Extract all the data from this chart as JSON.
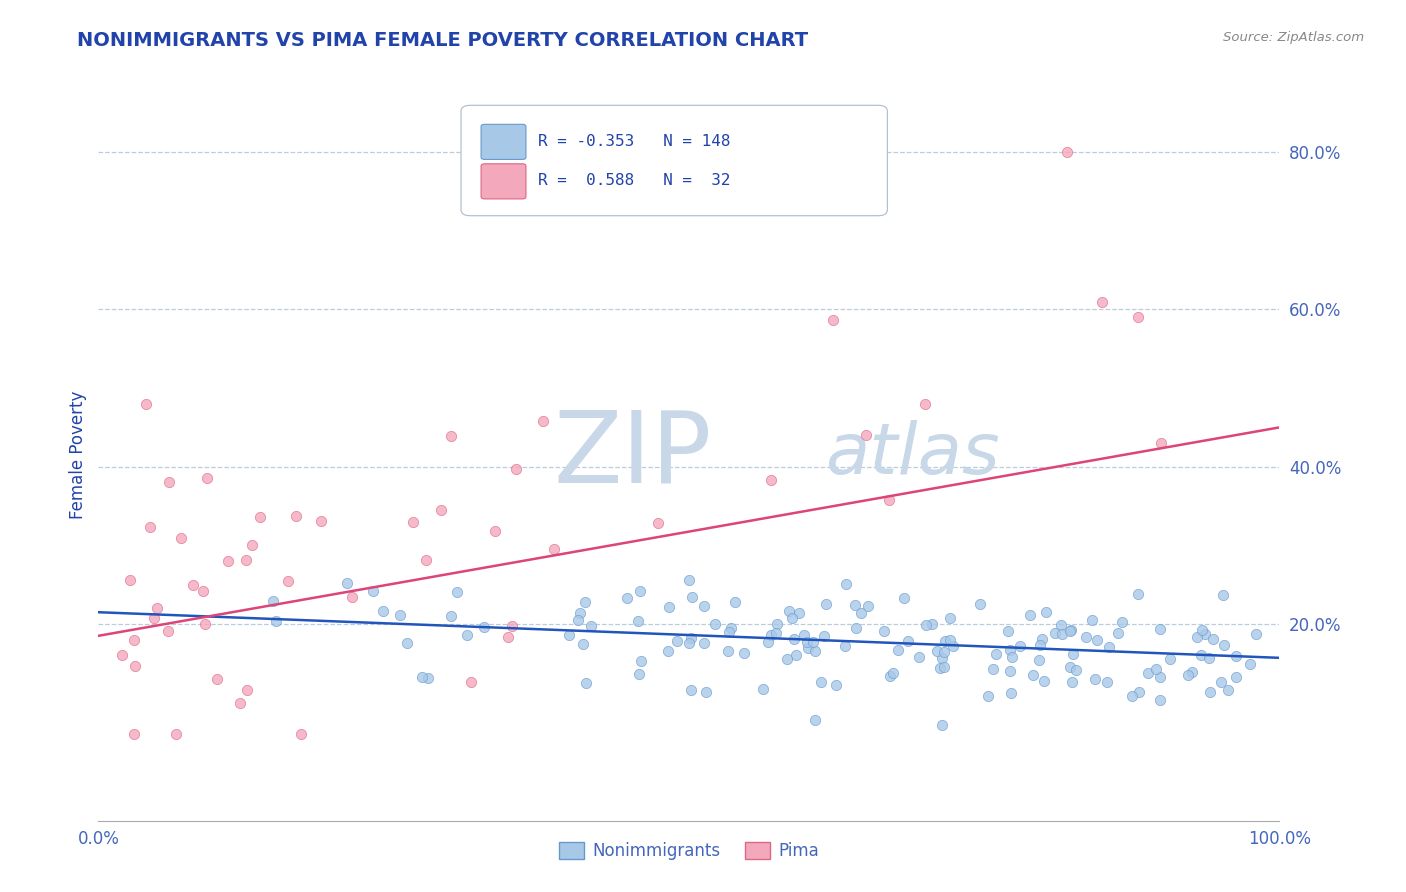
{
  "title": "NONIMMIGRANTS VS PIMA FEMALE POVERTY CORRELATION CHART",
  "source": "Source: ZipAtlas.com",
  "ylabel": "Female Poverty",
  "ytick_positions": [
    0.0,
    0.2,
    0.4,
    0.6,
    0.8
  ],
  "ytick_labels": [
    "",
    "20.0%",
    "40.0%",
    "60.0%",
    "80.0%"
  ],
  "xlim": [
    0.0,
    1.0
  ],
  "ylim": [
    -0.05,
    0.88
  ],
  "blue_R": -0.353,
  "blue_N": 148,
  "pink_R": 0.588,
  "pink_N": 32,
  "blue_dot_color": "#a8c8e8",
  "blue_dot_edge": "#6699cc",
  "blue_line_color": "#2255bb",
  "pink_dot_color": "#f4a8bc",
  "pink_dot_edge": "#dd6688",
  "pink_line_color": "#dd4477",
  "background_color": "#ffffff",
  "grid_color": "#bbccdd",
  "title_color": "#2244aa",
  "axis_label_color": "#2244aa",
  "tick_color": "#4466bb",
  "watermark_color": "#c8d8e8",
  "blue_intercept": 0.215,
  "blue_slope": -0.058,
  "pink_intercept": 0.185,
  "pink_slope": 0.265,
  "legend_label_color": "#2244aa"
}
